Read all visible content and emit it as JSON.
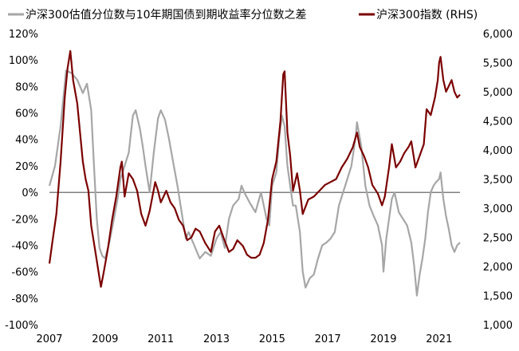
{
  "chart_data": {
    "type": "line",
    "title": "",
    "xlabel": "",
    "ylabel_left": "",
    "ylabel_right": "",
    "legend_position": "top",
    "grid": false,
    "x_ticks": [
      "2007",
      "2009",
      "2011",
      "2013",
      "2015",
      "2017",
      "2019",
      "2021"
    ],
    "x_range": [
      2007.0,
      2021.75
    ],
    "y_left_ticks": [
      "-100%",
      "-80%",
      "-60%",
      "-40%",
      "-20%",
      "0%",
      "20%",
      "40%",
      "60%",
      "80%",
      "100%",
      "120%"
    ],
    "y_left_range": [
      -100,
      120
    ],
    "y_right_ticks": [
      "1,000",
      "1,500",
      "2,000",
      "2,500",
      "3,000",
      "3,500",
      "4,000",
      "4,500",
      "5,000",
      "5,500",
      "6,000"
    ],
    "y_right_range": [
      1000,
      6000
    ],
    "zero_line": true,
    "series": [
      {
        "name": "沪深300估值分位数与10年期国债到期收益率分位数之差",
        "axis": "left",
        "color": "#a6a6a6",
        "points": [
          [
            2007.0,
            5
          ],
          [
            2007.2,
            20
          ],
          [
            2007.4,
            50
          ],
          [
            2007.6,
            92
          ],
          [
            2007.8,
            90
          ],
          [
            2008.0,
            85
          ],
          [
            2008.2,
            75
          ],
          [
            2008.35,
            82
          ],
          [
            2008.5,
            62
          ],
          [
            2008.6,
            20
          ],
          [
            2008.7,
            -20
          ],
          [
            2008.8,
            -42
          ],
          [
            2008.9,
            -48
          ],
          [
            2009.0,
            -50
          ],
          [
            2009.15,
            -38
          ],
          [
            2009.3,
            -22
          ],
          [
            2009.45,
            -5
          ],
          [
            2009.55,
            10
          ],
          [
            2009.7,
            20
          ],
          [
            2009.85,
            30
          ],
          [
            2010.0,
            58
          ],
          [
            2010.1,
            62
          ],
          [
            2010.25,
            48
          ],
          [
            2010.35,
            35
          ],
          [
            2010.45,
            20
          ],
          [
            2010.6,
            0
          ],
          [
            2010.75,
            30
          ],
          [
            2010.9,
            56
          ],
          [
            2011.0,
            62
          ],
          [
            2011.15,
            55
          ],
          [
            2011.3,
            40
          ],
          [
            2011.45,
            22
          ],
          [
            2011.6,
            5
          ],
          [
            2011.75,
            -15
          ],
          [
            2011.9,
            -35
          ],
          [
            2012.0,
            -30
          ],
          [
            2012.2,
            -40
          ],
          [
            2012.4,
            -50
          ],
          [
            2012.6,
            -45
          ],
          [
            2012.8,
            -48
          ],
          [
            2013.0,
            -35
          ],
          [
            2013.15,
            -30
          ],
          [
            2013.3,
            -42
          ],
          [
            2013.45,
            -20
          ],
          [
            2013.6,
            -10
          ],
          [
            2013.8,
            -5
          ],
          [
            2013.9,
            5
          ],
          [
            2014.0,
            0
          ],
          [
            2014.2,
            -8
          ],
          [
            2014.4,
            -15
          ],
          [
            2014.6,
            0
          ],
          [
            2014.8,
            -20
          ],
          [
            2014.9,
            -25
          ],
          [
            2015.0,
            5
          ],
          [
            2015.15,
            15
          ],
          [
            2015.25,
            40
          ],
          [
            2015.35,
            58
          ],
          [
            2015.45,
            50
          ],
          [
            2015.55,
            20
          ],
          [
            2015.65,
            5
          ],
          [
            2015.75,
            -10
          ],
          [
            2015.85,
            -10
          ],
          [
            2016.0,
            -30
          ],
          [
            2016.1,
            -60
          ],
          [
            2016.2,
            -72
          ],
          [
            2016.35,
            -65
          ],
          [
            2016.5,
            -62
          ],
          [
            2016.65,
            -50
          ],
          [
            2016.8,
            -40
          ],
          [
            2016.95,
            -38
          ],
          [
            2017.1,
            -35
          ],
          [
            2017.25,
            -30
          ],
          [
            2017.4,
            -10
          ],
          [
            2017.55,
            0
          ],
          [
            2017.7,
            10
          ],
          [
            2017.85,
            20
          ],
          [
            2018.0,
            42
          ],
          [
            2018.05,
            53
          ],
          [
            2018.2,
            35
          ],
          [
            2018.35,
            5
          ],
          [
            2018.5,
            -10
          ],
          [
            2018.65,
            -18
          ],
          [
            2018.8,
            -25
          ],
          [
            2018.95,
            -40
          ],
          [
            2019.0,
            -60
          ],
          [
            2019.1,
            -35
          ],
          [
            2019.2,
            -20
          ],
          [
            2019.3,
            -5
          ],
          [
            2019.4,
            0
          ],
          [
            2019.55,
            -15
          ],
          [
            2019.7,
            -20
          ],
          [
            2019.85,
            -25
          ],
          [
            2020.0,
            -38
          ],
          [
            2020.1,
            -55
          ],
          [
            2020.2,
            -78
          ],
          [
            2020.3,
            -62
          ],
          [
            2020.4,
            -50
          ],
          [
            2020.5,
            -35
          ],
          [
            2020.6,
            -15
          ],
          [
            2020.7,
            0
          ],
          [
            2020.8,
            5
          ],
          [
            2020.9,
            8
          ],
          [
            2021.0,
            10
          ],
          [
            2021.05,
            15
          ],
          [
            2021.15,
            -5
          ],
          [
            2021.25,
            -18
          ],
          [
            2021.35,
            -28
          ],
          [
            2021.45,
            -40
          ],
          [
            2021.55,
            -45
          ],
          [
            2021.65,
            -40
          ],
          [
            2021.75,
            -38
          ]
        ]
      },
      {
        "name": "沪深300指数 (RHS)",
        "axis": "right",
        "color": "#7b0000",
        "points": [
          [
            2007.0,
            2050
          ],
          [
            2007.1,
            2400
          ],
          [
            2007.25,
            2900
          ],
          [
            2007.4,
            3800
          ],
          [
            2007.55,
            4900
          ],
          [
            2007.65,
            5400
          ],
          [
            2007.75,
            5700
          ],
          [
            2007.85,
            5200
          ],
          [
            2008.0,
            4800
          ],
          [
            2008.1,
            4300
          ],
          [
            2008.2,
            3800
          ],
          [
            2008.3,
            3500
          ],
          [
            2008.4,
            3300
          ],
          [
            2008.5,
            2700
          ],
          [
            2008.6,
            2400
          ],
          [
            2008.7,
            2100
          ],
          [
            2008.8,
            1800
          ],
          [
            2008.85,
            1650
          ],
          [
            2008.95,
            1900
          ],
          [
            2009.1,
            2300
          ],
          [
            2009.25,
            2800
          ],
          [
            2009.4,
            3200
          ],
          [
            2009.55,
            3700
          ],
          [
            2009.6,
            3800
          ],
          [
            2009.7,
            3200
          ],
          [
            2009.85,
            3600
          ],
          [
            2010.0,
            3500
          ],
          [
            2010.15,
            3300
          ],
          [
            2010.3,
            2900
          ],
          [
            2010.45,
            2700
          ],
          [
            2010.6,
            2950
          ],
          [
            2010.8,
            3450
          ],
          [
            2010.9,
            3300
          ],
          [
            2011.0,
            3100
          ],
          [
            2011.2,
            3300
          ],
          [
            2011.35,
            3100
          ],
          [
            2011.5,
            3000
          ],
          [
            2011.65,
            2800
          ],
          [
            2011.8,
            2700
          ],
          [
            2011.95,
            2450
          ],
          [
            2012.1,
            2500
          ],
          [
            2012.25,
            2650
          ],
          [
            2012.4,
            2600
          ],
          [
            2012.6,
            2400
          ],
          [
            2012.8,
            2250
          ],
          [
            2012.95,
            2600
          ],
          [
            2013.1,
            2700
          ],
          [
            2013.25,
            2500
          ],
          [
            2013.45,
            2250
          ],
          [
            2013.6,
            2300
          ],
          [
            2013.75,
            2450
          ],
          [
            2013.95,
            2350
          ],
          [
            2014.1,
            2200
          ],
          [
            2014.25,
            2150
          ],
          [
            2014.4,
            2150
          ],
          [
            2014.55,
            2200
          ],
          [
            2014.7,
            2400
          ],
          [
            2014.85,
            2800
          ],
          [
            2015.0,
            3500
          ],
          [
            2015.15,
            3800
          ],
          [
            2015.3,
            4500
          ],
          [
            2015.4,
            5300
          ],
          [
            2015.45,
            5350
          ],
          [
            2015.55,
            4300
          ],
          [
            2015.65,
            3900
          ],
          [
            2015.75,
            3300
          ],
          [
            2015.9,
            3600
          ],
          [
            2016.0,
            3300
          ],
          [
            2016.1,
            2900
          ],
          [
            2016.3,
            3150
          ],
          [
            2016.5,
            3200
          ],
          [
            2016.7,
            3300
          ],
          [
            2016.9,
            3400
          ],
          [
            2017.1,
            3450
          ],
          [
            2017.3,
            3500
          ],
          [
            2017.5,
            3700
          ],
          [
            2017.7,
            3850
          ],
          [
            2017.9,
            4050
          ],
          [
            2018.05,
            4300
          ],
          [
            2018.15,
            4050
          ],
          [
            2018.3,
            3900
          ],
          [
            2018.45,
            3700
          ],
          [
            2018.6,
            3400
          ],
          [
            2018.8,
            3250
          ],
          [
            2018.95,
            3050
          ],
          [
            2019.05,
            3200
          ],
          [
            2019.2,
            3700
          ],
          [
            2019.3,
            4100
          ],
          [
            2019.45,
            3700
          ],
          [
            2019.6,
            3800
          ],
          [
            2019.75,
            3950
          ],
          [
            2019.9,
            4050
          ],
          [
            2020.0,
            4150
          ],
          [
            2020.15,
            3700
          ],
          [
            2020.3,
            3900
          ],
          [
            2020.45,
            4100
          ],
          [
            2020.55,
            4700
          ],
          [
            2020.7,
            4600
          ],
          [
            2020.85,
            4900
          ],
          [
            2020.95,
            5200
          ],
          [
            2021.0,
            5500
          ],
          [
            2021.05,
            5600
          ],
          [
            2021.15,
            5200
          ],
          [
            2021.25,
            5000
          ],
          [
            2021.35,
            5100
          ],
          [
            2021.45,
            5200
          ],
          [
            2021.55,
            5000
          ],
          [
            2021.65,
            4900
          ],
          [
            2021.75,
            4950
          ]
        ]
      }
    ]
  }
}
